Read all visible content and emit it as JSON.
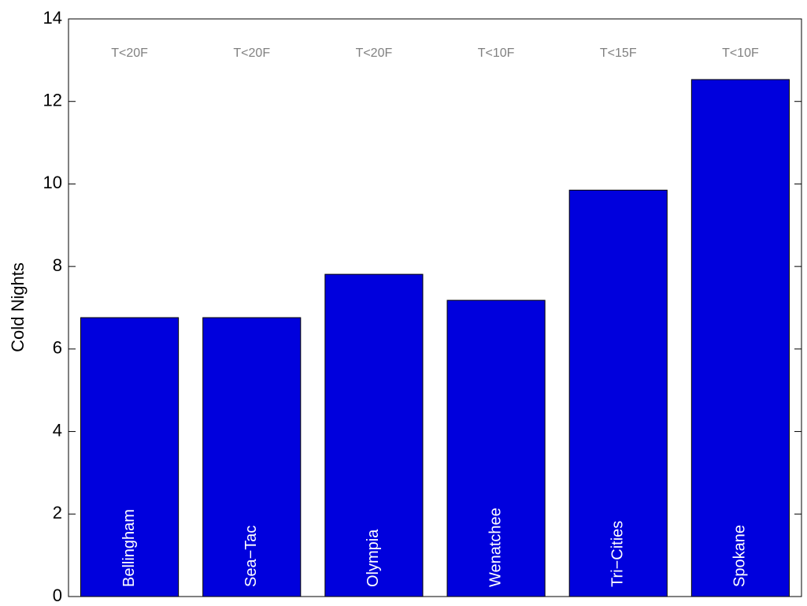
{
  "chart_data": {
    "type": "bar",
    "y_label": "Cold Nights",
    "categories": [
      "Bellingham",
      "Sea−Tac",
      "Olympia",
      "Wenatchee",
      "Tri−Cities",
      "Spokane"
    ],
    "values": [
      6.76,
      6.76,
      7.81,
      7.18,
      9.85,
      12.53
    ],
    "annotations": [
      "T<20F",
      "T<20F",
      "T<20F",
      "T<10F",
      "T<15F",
      "T<10F"
    ],
    "color": "#0000dd",
    "ylim": [
      0,
      14
    ],
    "yticks": [
      0,
      2,
      4,
      6,
      8,
      10,
      12,
      14
    ],
    "grid": false
  }
}
